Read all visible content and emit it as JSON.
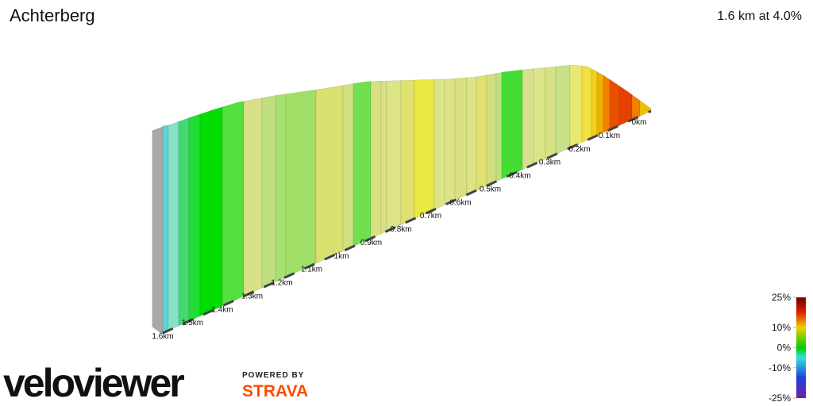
{
  "chart_data": {
    "type": "profile3d",
    "title": "Achterberg",
    "subtitle": "1.6 km at 4.0%",
    "xticks": [
      {
        "value": 0,
        "label": "0km"
      },
      {
        "value": 0.1,
        "label": "0.1km"
      },
      {
        "value": 0.2,
        "label": "0.2km"
      },
      {
        "value": 0.3,
        "label": "0.3km"
      },
      {
        "value": 0.4,
        "label": "0.4km"
      },
      {
        "value": 0.5,
        "label": "0.5km"
      },
      {
        "value": 0.6,
        "label": "0.6km"
      },
      {
        "value": 0.7,
        "label": "0.7km"
      },
      {
        "value": 0.8,
        "label": "0.8km"
      },
      {
        "value": 0.9,
        "label": "0.9km"
      },
      {
        "value": 1,
        "label": "1km"
      },
      {
        "value": 1.1,
        "label": "1.1km"
      },
      {
        "value": 1.2,
        "label": "1.2km"
      },
      {
        "value": 1.3,
        "label": "1.3km"
      },
      {
        "value": 1.4,
        "label": "1.4km"
      },
      {
        "value": 1.5,
        "label": "1.5km"
      },
      {
        "value": 1.6,
        "label": "1.6km"
      }
    ],
    "xlim": [
      0,
      1.6
    ],
    "segment_colors": [
      "#55d8d8",
      "#88e0c8",
      "#44d870",
      "#22dd33",
      "#00dd00",
      "#55e040",
      "#d8e088",
      "#c0e080",
      "#a8e070",
      "#a0e068",
      "#d8e070",
      "#d0e080",
      "#70e050",
      "#d8e080",
      "#d8e088",
      "#dde488",
      "#e0e070",
      "#e8e840",
      "#dde488",
      "#dde488",
      "#d8e080",
      "#dde488",
      "#e0e070",
      "#d0e080",
      "#c0e080",
      "#44dd33",
      "#d8e090",
      "#dde488",
      "#d8e088",
      "#c8e088",
      "#e8e870",
      "#f0e040",
      "#f0d020",
      "#f0b000",
      "#f08000",
      "#e85000",
      "#e84000",
      "#f08000",
      "#f0c000"
    ],
    "legend": {
      "ylim": [
        -25,
        25
      ],
      "ticks": [
        {
          "value": 25,
          "label": "25%"
        },
        {
          "value": 10,
          "label": "10%"
        },
        {
          "value": 0,
          "label": "0%"
        },
        {
          "value": -10,
          "label": "-10%"
        },
        {
          "value": -25,
          "label": "-25%"
        }
      ]
    }
  },
  "branding": {
    "logo": "veloviewer",
    "powered_by": "POWERED BY",
    "partner": "STRAVA"
  }
}
